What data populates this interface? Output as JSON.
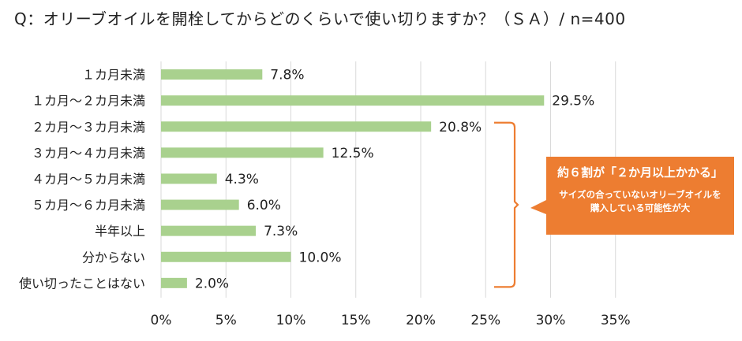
{
  "title": "Q：オリーブオイルを開栓してからどのくらいで使い切りますか？（ＳＡ）/ n=400",
  "chart_data": {
    "type": "bar",
    "orientation": "horizontal",
    "categories": [
      "１カ月未満",
      "１カ月～２カ月未満",
      "２カ月～３カ月未満",
      "３カ月～４カ月未満",
      "４カ月～５カ月未満",
      "５カ月～６カ月未満",
      "半年以上",
      "分からない",
      "使い切ったことはない"
    ],
    "values": [
      7.8,
      29.5,
      20.8,
      12.5,
      4.3,
      6.0,
      7.3,
      10.0,
      2.0
    ],
    "value_labels": [
      "7.8%",
      "29.5%",
      "20.8%",
      "12.5%",
      "4.3%",
      "6.0%",
      "7.3%",
      "10.0%",
      "2.0%"
    ],
    "xlim": [
      0,
      35
    ],
    "xticks": [
      0,
      5,
      10,
      15,
      20,
      25,
      30,
      35
    ],
    "xtick_labels": [
      "0%",
      "5%",
      "10%",
      "15%",
      "20%",
      "25%",
      "30%",
      "35%"
    ],
    "grid": true,
    "bar_color": "#a9d18e",
    "grid_color": "#d9d9d9",
    "bracket_range": [
      "２カ月～３カ月未満",
      "使い切ったことはない"
    ],
    "bracket_color": "#ed7d31"
  },
  "callout": {
    "headline": "約６割が「２か月以上かかる」",
    "sub_lines": [
      "サイズの合っていないオリーブオイルを",
      "購入している可能性が大"
    ],
    "color": "#ed7d31"
  }
}
